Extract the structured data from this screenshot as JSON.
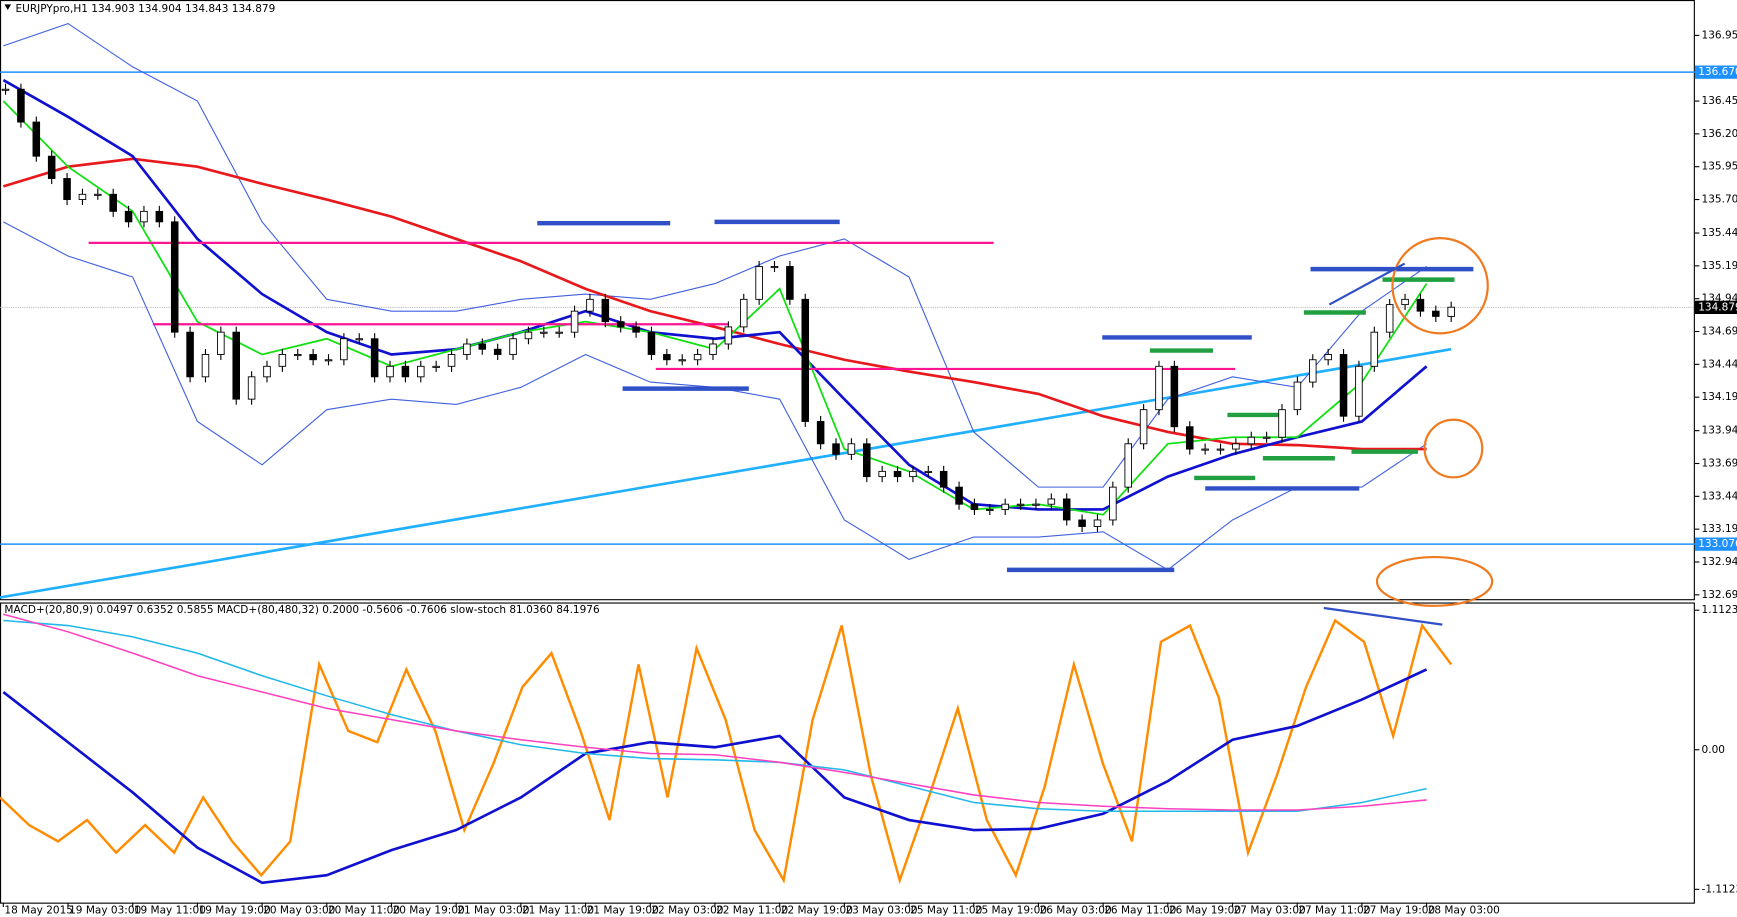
{
  "chart_data": {
    "type": "candlestick",
    "title": "EURJPYpro,H1  134.903 134.904 134.843 134.879",
    "categories": [
      "18 May 2015",
      "19 May 03:00",
      "19 May 11:00",
      "19 May 19:00",
      "20 May 03:00",
      "20 May 11:00",
      "20 May 19:00",
      "21 May 03:00",
      "21 May 11:00",
      "21 May 19:00",
      "22 May 03:00",
      "22 May 11:00",
      "22 May 19:00",
      "23 May 03:00",
      "25 May 11:00",
      "25 May 19:00",
      "26 May 03:00",
      "26 May 11:00",
      "26 May 19:00",
      "27 May 03:00",
      "27 May 11:00",
      "27 May 19:00",
      "28 May 03:00"
    ],
    "ylim": [
      132.657,
      137.211
    ],
    "yticks": [
      {
        "value": 136.95,
        "label": "136.950"
      },
      {
        "value": 136.45,
        "label": "136.450"
      },
      {
        "value": 136.2,
        "label": "136.200"
      },
      {
        "value": 135.95,
        "label": "135.950"
      },
      {
        "value": 135.7,
        "label": "135.700"
      },
      135.445,
      135.195,
      134.945,
      134.695,
      134.445,
      134.195,
      {
        "value": 133.94,
        "label": "133.940"
      },
      {
        "value": 133.69,
        "label": "133.690"
      },
      {
        "value": 133.44,
        "label": "133.440"
      },
      {
        "value": 133.19,
        "label": "133.190"
      },
      {
        "value": 132.94,
        "label": "132.940"
      },
      {
        "value": 132.69,
        "label": "132.690"
      }
    ],
    "price_labels": [
      {
        "value": 136.67,
        "label": "136.670",
        "color": "#1e90ff"
      },
      {
        "value": 134.879,
        "label": "134.879",
        "color": "#000000"
      },
      {
        "value": 133.076,
        "label": "133.076",
        "color": "#1e90ff"
      }
    ],
    "candles": {
      "values": [
        136.54,
        136.29,
        136.03,
        135.86,
        135.7,
        135.74,
        135.74,
        135.61,
        135.53,
        135.61,
        135.53,
        134.69,
        134.35,
        134.52,
        134.69,
        134.18,
        134.35,
        134.43,
        134.52,
        134.52,
        134.48,
        134.48,
        134.64,
        134.64,
        134.35,
        134.43,
        134.35,
        134.43,
        134.43,
        134.52,
        134.6,
        134.56,
        134.52,
        134.64,
        134.69,
        134.69,
        134.69,
        134.85,
        134.94,
        134.77,
        134.73,
        134.69,
        134.52,
        134.48,
        134.48,
        134.52,
        134.6,
        134.73,
        134.94,
        135.19,
        135.19,
        134.94,
        134.01,
        133.84,
        133.76,
        133.84,
        133.59,
        133.63,
        133.59,
        133.63,
        133.63,
        133.51,
        133.38,
        133.34,
        133.34,
        133.38,
        133.38,
        133.38,
        133.42,
        133.26,
        133.21,
        133.26,
        133.51,
        133.84,
        134.1,
        134.43,
        133.97,
        133.8,
        133.8,
        133.8,
        133.84,
        133.89,
        133.89,
        134.1,
        134.31,
        134.48,
        134.52,
        134.05,
        134.43,
        134.69,
        134.9,
        134.94,
        134.85,
        134.81,
        134.88
      ]
    },
    "series": [
      {
        "color": "#4060e0",
        "values": [
          136.87,
          137.04,
          136.71,
          136.45,
          135.53,
          134.94,
          134.85,
          134.85,
          134.94,
          134.98,
          134.94,
          135.06,
          135.27,
          135.4,
          135.11,
          133.93,
          133.51,
          133.51,
          134.18,
          134.35,
          134.27,
          134.85,
          135.19
        ]
      },
      {
        "color": "#4060e0",
        "values": [
          135.53,
          135.27,
          135.11,
          134.01,
          133.68,
          134.1,
          134.18,
          134.14,
          134.27,
          134.52,
          134.31,
          134.27,
          134.18,
          133.26,
          132.96,
          133.13,
          133.13,
          133.17,
          132.88,
          133.26,
          133.51,
          133.51,
          133.84
        ]
      },
      {
        "color": "#e8191c",
        "values": [
          135.8,
          135.95,
          136.01,
          135.95,
          135.82,
          135.7,
          135.57,
          135.4,
          135.23,
          135.02,
          134.85,
          134.73,
          134.6,
          134.48,
          134.39,
          134.31,
          134.22,
          134.05,
          133.93,
          133.84,
          133.83,
          133.8,
          133.8
        ]
      },
      {
        "color": "#1010d0",
        "values": [
          136.61,
          136.33,
          136.03,
          135.4,
          134.98,
          134.69,
          134.52,
          134.56,
          134.69,
          134.85,
          134.69,
          134.64,
          134.69,
          134.18,
          133.68,
          133.38,
          133.34,
          133.34,
          133.59,
          133.76,
          133.89,
          134.01,
          134.43
        ]
      },
      {
        "color": "#10e010",
        "values": [
          136.45,
          135.95,
          135.61,
          134.77,
          134.52,
          134.64,
          134.43,
          134.56,
          134.69,
          134.77,
          134.69,
          134.56,
          135.02,
          133.8,
          133.63,
          133.34,
          133.38,
          133.3,
          133.84,
          133.89,
          133.89,
          134.31,
          135.06
        ]
      }
    ],
    "trendline": {
      "color": "#20b0ff",
      "values": [
        132.67,
        134.56
      ]
    },
    "levels": {
      "color": "#ff1493",
      "values": [
        135.37,
        134.75,
        134.41
      ]
    },
    "blue_marks": {
      "color": "#3050c8",
      "values": [
        135.52,
        135.53,
        134.26,
        134.65,
        133.5,
        132.88,
        135.17
      ]
    },
    "green_marks": {
      "color": "#20a040",
      "values": [
        134.55,
        134.06,
        133.73,
        133.58,
        134.84,
        135.09,
        133.78
      ]
    },
    "indicator": {
      "title": "MACD+(20,80,9) 0.0497 0.6352 0.5855  MACD+(80,480,32) 0.2000 -0.5606 -0.7606  slow-stoch 81.0360 84.1976",
      "ylim": [
        -1.218,
        1.165
      ],
      "yticks": [
        1.1123,
        {
          "value": 0,
          "label": "0.00"
        },
        -1.1123
      ],
      "stoch": {
        "color": "#ff8c00",
        "values": [
          -0.38,
          -0.6,
          -0.73,
          -0.56,
          -0.82,
          -0.6,
          -0.82,
          -0.38,
          -0.73,
          -1.0,
          -0.73,
          0.68,
          0.15,
          0.06,
          0.64,
          0.15,
          -0.64,
          -0.11,
          0.5,
          0.77,
          0.15,
          -0.56,
          0.68,
          -0.38,
          0.81,
          0.24,
          -0.64,
          -1.04,
          0.24,
          0.99,
          -0.2,
          -1.04,
          -0.38,
          0.33,
          -0.56,
          -1.0,
          -0.29,
          0.68,
          -0.11,
          -0.73,
          0.86,
          0.99,
          0.41,
          -0.82,
          -0.2,
          0.5,
          1.03,
          0.86,
          0.11,
          0.99,
          0.68
        ]
      },
      "series": [
        {
          "color": "#1010d0",
          "values": [
            0.46,
            0.06,
            -0.34,
            -0.78,
            -1.06,
            -1.0,
            -0.8,
            -0.64,
            -0.38,
            -0.03,
            0.06,
            0.02,
            0.11,
            -0.38,
            -0.56,
            -0.64,
            -0.63,
            -0.51,
            -0.25,
            0.08,
            0.19,
            0.4,
            0.64
          ]
        },
        {
          "color": "#20b8e8",
          "values": [
            1.03,
            0.99,
            0.9,
            0.77,
            0.59,
            0.43,
            0.28,
            0.15,
            0.04,
            -0.03,
            -0.07,
            -0.08,
            -0.1,
            -0.16,
            -0.29,
            -0.42,
            -0.47,
            -0.49,
            -0.49,
            -0.49,
            -0.49,
            -0.42,
            -0.31
          ]
        },
        {
          "color": "#ff40c0",
          "values": [
            1.08,
            0.94,
            0.77,
            0.59,
            0.46,
            0.33,
            0.24,
            0.15,
            0.08,
            0.02,
            -0.03,
            -0.04,
            -0.1,
            -0.18,
            -0.27,
            -0.36,
            -0.42,
            -0.45,
            -0.47,
            -0.48,
            -0.48,
            -0.45,
            -0.4
          ]
        }
      ]
    }
  }
}
